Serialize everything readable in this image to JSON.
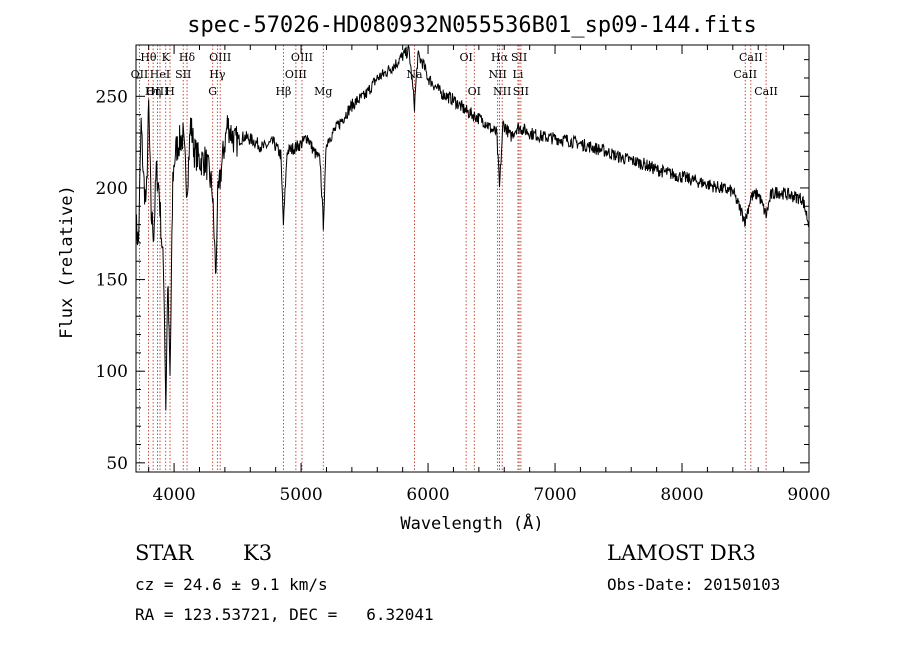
{
  "chart_data": {
    "type": "line",
    "title": "spec-57026-HD080932N055536B01_sp09-144.fits",
    "xlabel": "Wavelength (Å)",
    "ylabel": "Flux (relative)",
    "xlim": [
      3700,
      9000
    ],
    "ylim": [
      45,
      278
    ],
    "x_ticks": [
      4000,
      5000,
      6000,
      7000,
      8000,
      9000
    ],
    "y_ticks": [
      50,
      100,
      150,
      200,
      250
    ],
    "grid": false,
    "series": [
      {
        "name": "flux",
        "x": [
          3700,
          3720,
          3740,
          3760,
          3780,
          3800,
          3820,
          3840,
          3860,
          3880,
          3900,
          3920,
          3935,
          3950,
          3968,
          3990,
          4010,
          4040,
          4070,
          4102,
          4130,
          4160,
          4200,
          4250,
          4300,
          4330,
          4340,
          4370,
          4420,
          4480,
          4550,
          4620,
          4700,
          4780,
          4840,
          4861,
          4890,
          4950,
          5000,
          5050,
          5100,
          5150,
          5175,
          5200,
          5250,
          5300,
          5350,
          5400,
          5450,
          5500,
          5550,
          5600,
          5650,
          5700,
          5750,
          5800,
          5850,
          5893,
          5920,
          5960,
          6000,
          6050,
          6100,
          6150,
          6200,
          6250,
          6300,
          6350,
          6400,
          6450,
          6500,
          6540,
          6563,
          6590,
          6620,
          6650,
          6700,
          6750,
          6800,
          6900,
          7000,
          7100,
          7200,
          7300,
          7400,
          7500,
          7600,
          7700,
          7800,
          7900,
          8000,
          8100,
          8200,
          8300,
          8400,
          8498,
          8542,
          8600,
          8662,
          8700,
          8750,
          8800,
          8850,
          8900,
          8950,
          9000
        ],
        "values": [
          180,
          170,
          235,
          205,
          190,
          245,
          185,
          175,
          210,
          200,
          175,
          150,
          80,
          150,
          95,
          205,
          220,
          225,
          228,
          200,
          235,
          220,
          215,
          215,
          200,
          150,
          190,
          210,
          235,
          225,
          228,
          226,
          222,
          225,
          218,
          180,
          220,
          222,
          224,
          228,
          220,
          215,
          180,
          225,
          230,
          235,
          240,
          245,
          248,
          250,
          255,
          260,
          262,
          265,
          268,
          272,
          275,
          245,
          272,
          268,
          260,
          256,
          252,
          250,
          248,
          245,
          242,
          240,
          238,
          236,
          232,
          230,
          200,
          235,
          232,
          228,
          233,
          232,
          230,
          228,
          227,
          226,
          224,
          222,
          220,
          217,
          215,
          213,
          210,
          208,
          206,
          204,
          202,
          200,
          198,
          182,
          195,
          197,
          185,
          196,
          198,
          197,
          196,
          195,
          194,
          180
        ]
      }
    ],
    "line_markers": [
      {
        "label": "Hθ",
        "x": 3798,
        "row": 0
      },
      {
        "label": "K",
        "x": 3934,
        "row": 0
      },
      {
        "label": "Hδ",
        "x": 4102,
        "row": 0
      },
      {
        "label": "OIII",
        "x": 4363,
        "row": 0
      },
      {
        "label": "OIII",
        "x": 5007,
        "row": 0
      },
      {
        "label": "OI",
        "x": 6300,
        "row": 0
      },
      {
        "label": "Hα",
        "x": 6563,
        "row": 0
      },
      {
        "label": "SII",
        "x": 6717,
        "row": 0
      },
      {
        "label": "CaII",
        "x": 8542,
        "row": 0
      },
      {
        "label": "OII",
        "x": 3727,
        "row": 1
      },
      {
        "label": "HeI",
        "x": 3889,
        "row": 1
      },
      {
        "label": "SII",
        "x": 4072,
        "row": 1
      },
      {
        "label": "Hγ",
        "x": 4341,
        "row": 1
      },
      {
        "label": "OIII",
        "x": 4959,
        "row": 1
      },
      {
        "label": "Na",
        "x": 5893,
        "row": 1
      },
      {
        "label": "NII",
        "x": 6548,
        "row": 1
      },
      {
        "label": "Li",
        "x": 6708,
        "row": 1
      },
      {
        "label": "CaII",
        "x": 8498,
        "row": 1
      },
      {
        "label": "OIII",
        "x": 3869,
        "row": 2
      },
      {
        "label": "Hη",
        "x": 3835,
        "row": 2
      },
      {
        "label": "H",
        "x": 3968,
        "row": 2
      },
      {
        "label": "G",
        "x": 4304,
        "row": 2
      },
      {
        "label": "Hβ",
        "x": 4861,
        "row": 2
      },
      {
        "label": "Mg",
        "x": 5175,
        "row": 2
      },
      {
        "label": "OI",
        "x": 6364,
        "row": 2
      },
      {
        "label": "NII",
        "x": 6584,
        "row": 2
      },
      {
        "label": "SII",
        "x": 6731,
        "row": 2
      },
      {
        "label": "CaII",
        "x": 8662,
        "row": 2
      }
    ]
  },
  "info": {
    "object_class": "STAR",
    "subclass": "K3",
    "survey": "LAMOST DR3",
    "cz": "cz = 24.6 ± 9.1 km/s",
    "obs_date": "Obs-Date: 20150103",
    "coords": "RA = 123.53721, DEC =   6.32041"
  }
}
